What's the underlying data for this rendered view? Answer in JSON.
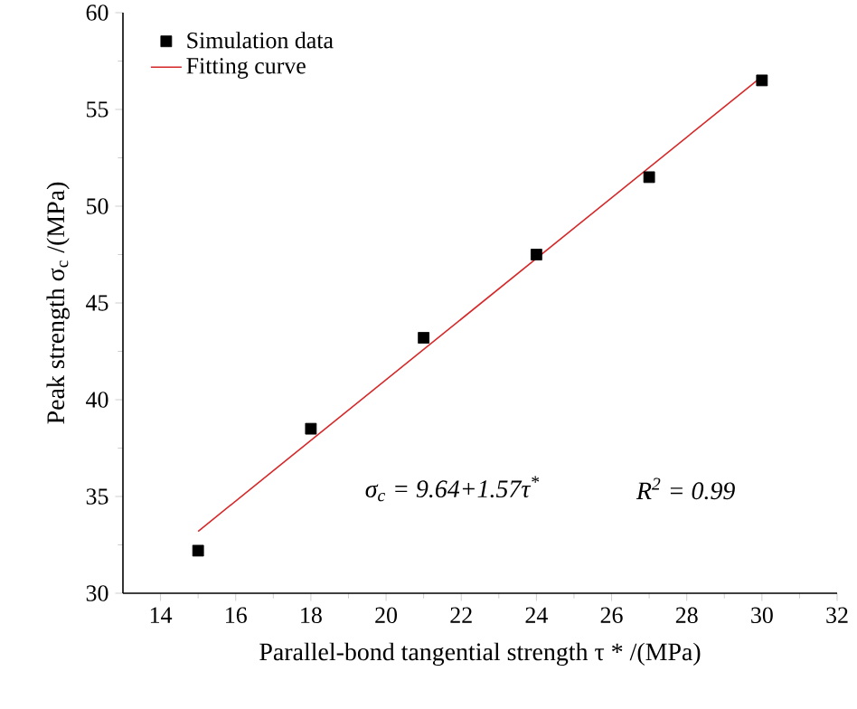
{
  "chart_data": {
    "type": "scatter",
    "xlabel": "Parallel-bond tangential strength τ * /(MPa)",
    "ylabel": "Peak strength σ$_{c}$ /(MPa)",
    "xlim": [
      13,
      32
    ],
    "xticks": [
      14,
      16,
      18,
      20,
      22,
      24,
      26,
      28,
      30,
      32
    ],
    "ylim": [
      30,
      60
    ],
    "yticks": [
      30,
      35,
      40,
      45,
      50,
      55,
      60
    ],
    "grid": false,
    "legend": "top left",
    "series": [
      {
        "name": "Simulation data",
        "color": "#000000",
        "marker": "square",
        "x": [
          15,
          18,
          21,
          24,
          27,
          30
        ],
        "values": [
          32.2,
          38.5,
          43.2,
          47.5,
          51.5,
          56.5
        ]
      },
      {
        "name": "Fitting curve",
        "type": "line",
        "color": "#d62728",
        "marker": "none",
        "line_style": "solid",
        "x": [
          15,
          30
        ],
        "values": [
          33.2,
          56.7
        ]
      }
    ],
    "annotations": [
      "σ$_{c}$ = 9.64+1.57τ$^{*}$",
      "R$^{2}$ = 0.99"
    ]
  }
}
